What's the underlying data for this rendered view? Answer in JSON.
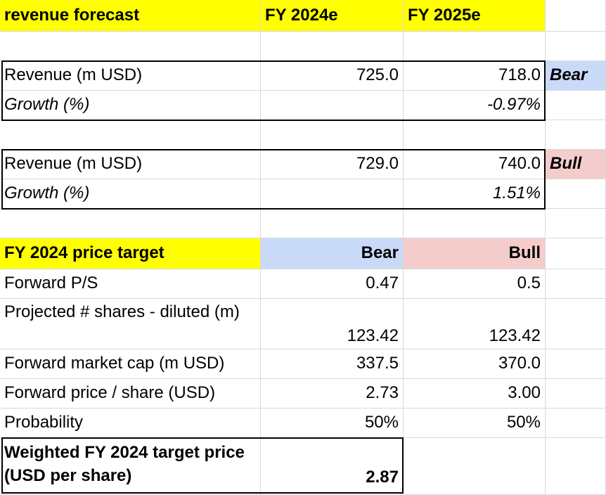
{
  "header": {
    "title": "revenue forecast",
    "col_b": "FY 2024e",
    "col_c": "FY 2025e"
  },
  "bear_scenario": {
    "revenue_label": "Revenue (m USD)",
    "revenue_2024": "725.0",
    "revenue_2025": "718.0",
    "tag": "Bear",
    "growth_label": "Growth (%)",
    "growth_2025": "-0.97%"
  },
  "bull_scenario": {
    "revenue_label": "Revenue (m USD)",
    "revenue_2024": "729.0",
    "revenue_2025": "740.0",
    "tag": "Bull",
    "growth_label": "Growth (%)",
    "growth_2025": "1.51%"
  },
  "price_target": {
    "title": "FY 2024 price target",
    "bear_label": "Bear",
    "bull_label": "Bull",
    "rows": [
      {
        "label": "Forward P/S",
        "bear": "0.47",
        "bull": "0.5"
      },
      {
        "label": "Projected # shares - diluted (m)",
        "bear": "123.42",
        "bull": "123.42"
      },
      {
        "label": "Forward market cap (m USD)",
        "bear": "337.5",
        "bull": "370.0"
      },
      {
        "label": "Forward price / share (USD)",
        "bear": "2.73",
        "bull": "3.00"
      },
      {
        "label": "Probability",
        "bear": "50%",
        "bull": "50%"
      }
    ],
    "weighted_label": "Weighted FY 2024 target price (USD per share)",
    "weighted_value": "2.87"
  },
  "colors": {
    "header_yellow": "#ffff00",
    "bear_blue": "#c9daf8",
    "bull_red": "#f4cccc",
    "gridline": "#d9d9d9"
  }
}
